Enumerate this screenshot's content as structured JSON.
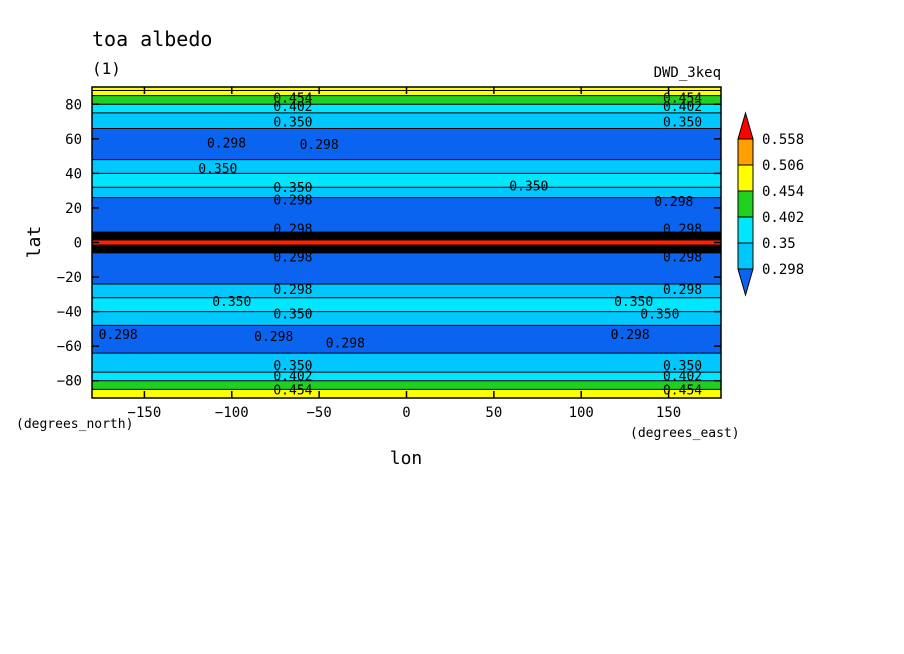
{
  "chart_data": {
    "type": "heatmap",
    "title": "toa albedo",
    "subtitle": "(1)",
    "dataset_label": "DWD_3keq",
    "xlabel": "lon",
    "ylabel": "lat",
    "x_units": "(degrees_east)",
    "y_units": "(degrees_north)",
    "xlim": [
      -180,
      180
    ],
    "ylim": [
      -90,
      90
    ],
    "x_ticks": [
      -150,
      -100,
      -50,
      0,
      50,
      100,
      150
    ],
    "x_tick_labels": [
      "−150",
      "−100",
      "−50",
      "0",
      "50",
      "100",
      "150"
    ],
    "y_ticks": [
      80,
      60,
      40,
      20,
      0,
      -20,
      -40,
      -60,
      -80
    ],
    "y_tick_labels": [
      "80",
      "60",
      "40",
      "20",
      "0",
      "−20",
      "−40",
      "−60",
      "−80"
    ],
    "colorbar": {
      "levels": [
        0.298,
        0.35,
        0.402,
        0.454,
        0.506,
        0.558
      ],
      "level_labels": [
        "0.298",
        "0.35",
        "0.402",
        "0.454",
        "0.506",
        "0.558"
      ],
      "colors": [
        "#0a64f0",
        "#00c8ff",
        "#00e6ff",
        "#20d020",
        "#ffff00",
        "#ffa000",
        "#ff0000"
      ],
      "extend": "both"
    },
    "zonal_bands": [
      {
        "lat_from": 90,
        "lat_to": 88,
        "color": "#ffff00"
      },
      {
        "lat_from": 88,
        "lat_to": 85,
        "color": "#ffff00"
      },
      {
        "lat_from": 85,
        "lat_to": 80,
        "color": "#20d020"
      },
      {
        "lat_from": 80,
        "lat_to": 75,
        "color": "#00e6ff"
      },
      {
        "lat_from": 75,
        "lat_to": 66,
        "color": "#00c8ff"
      },
      {
        "lat_from": 66,
        "lat_to": 48,
        "color": "#0a64f0"
      },
      {
        "lat_from": 48,
        "lat_to": 40,
        "color": "#00c8ff"
      },
      {
        "lat_from": 40,
        "lat_to": 32,
        "color": "#00e6ff"
      },
      {
        "lat_from": 32,
        "lat_to": 26,
        "color": "#00c8ff"
      },
      {
        "lat_from": 26,
        "lat_to": 6,
        "color": "#0a64f0"
      },
      {
        "lat_from": 6,
        "lat_to": -6,
        "color": "#000000"
      },
      {
        "lat_from": -6,
        "lat_to": -24,
        "color": "#0a64f0"
      },
      {
        "lat_from": -24,
        "lat_to": -32,
        "color": "#00c8ff"
      },
      {
        "lat_from": -32,
        "lat_to": -40,
        "color": "#00e6ff"
      },
      {
        "lat_from": -40,
        "lat_to": -48,
        "color": "#00c8ff"
      },
      {
        "lat_from": -48,
        "lat_to": -64,
        "color": "#0a64f0"
      },
      {
        "lat_from": -64,
        "lat_to": -75,
        "color": "#00c8ff"
      },
      {
        "lat_from": -75,
        "lat_to": -80,
        "color": "#00e6ff"
      },
      {
        "lat_from": -80,
        "lat_to": -85,
        "color": "#20d020"
      },
      {
        "lat_from": -85,
        "lat_to": -90,
        "color": "#ffff00"
      }
    ],
    "contour_labels": [
      {
        "lon": -65,
        "lat": 84,
        "text": "0.454"
      },
      {
        "lon": -65,
        "lat": 79,
        "text": "0.402"
      },
      {
        "lon": -65,
        "lat": 70,
        "text": "0.350"
      },
      {
        "lon": -103,
        "lat": 58,
        "text": "0.298"
      },
      {
        "lon": -50,
        "lat": 57,
        "text": "0.298"
      },
      {
        "lon": -108,
        "lat": 43,
        "text": "0.350"
      },
      {
        "lon": -65,
        "lat": 32,
        "text": "0.350"
      },
      {
        "lon": -65,
        "lat": 25,
        "text": "0.298"
      },
      {
        "lon": -65,
        "lat": 8,
        "text": "0.298"
      },
      {
        "lon": -65,
        "lat": -8,
        "text": "0.298"
      },
      {
        "lon": -65,
        "lat": -27,
        "text": "0.298"
      },
      {
        "lon": -100,
        "lat": -34,
        "text": "0.350"
      },
      {
        "lon": -65,
        "lat": -41,
        "text": "0.350"
      },
      {
        "lon": -165,
        "lat": -53,
        "text": "0.298"
      },
      {
        "lon": -76,
        "lat": -54,
        "text": "0.298"
      },
      {
        "lon": -35,
        "lat": -58,
        "text": "0.298"
      },
      {
        "lon": -65,
        "lat": -71,
        "text": "0.350"
      },
      {
        "lon": -65,
        "lat": -77,
        "text": "0.402"
      },
      {
        "lon": -65,
        "lat": -85,
        "text": "0.454"
      },
      {
        "lon": 158,
        "lat": 84,
        "text": "0.454"
      },
      {
        "lon": 158,
        "lat": 79,
        "text": "0.402"
      },
      {
        "lon": 158,
        "lat": 70,
        "text": "0.350"
      },
      {
        "lon": 70,
        "lat": 33,
        "text": "0.350"
      },
      {
        "lon": 153,
        "lat": 24,
        "text": "0.298"
      },
      {
        "lon": 158,
        "lat": 8,
        "text": "0.298"
      },
      {
        "lon": 158,
        "lat": -8,
        "text": "0.298"
      },
      {
        "lon": 158,
        "lat": -27,
        "text": "0.298"
      },
      {
        "lon": 130,
        "lat": -34,
        "text": "0.350"
      },
      {
        "lon": 145,
        "lat": -41,
        "text": "0.350"
      },
      {
        "lon": 128,
        "lat": -53,
        "text": "0.298"
      },
      {
        "lon": 158,
        "lat": -71,
        "text": "0.350"
      },
      {
        "lon": 158,
        "lat": -77,
        "text": "0.402"
      },
      {
        "lon": 158,
        "lat": -85,
        "text": "0.454"
      }
    ]
  }
}
